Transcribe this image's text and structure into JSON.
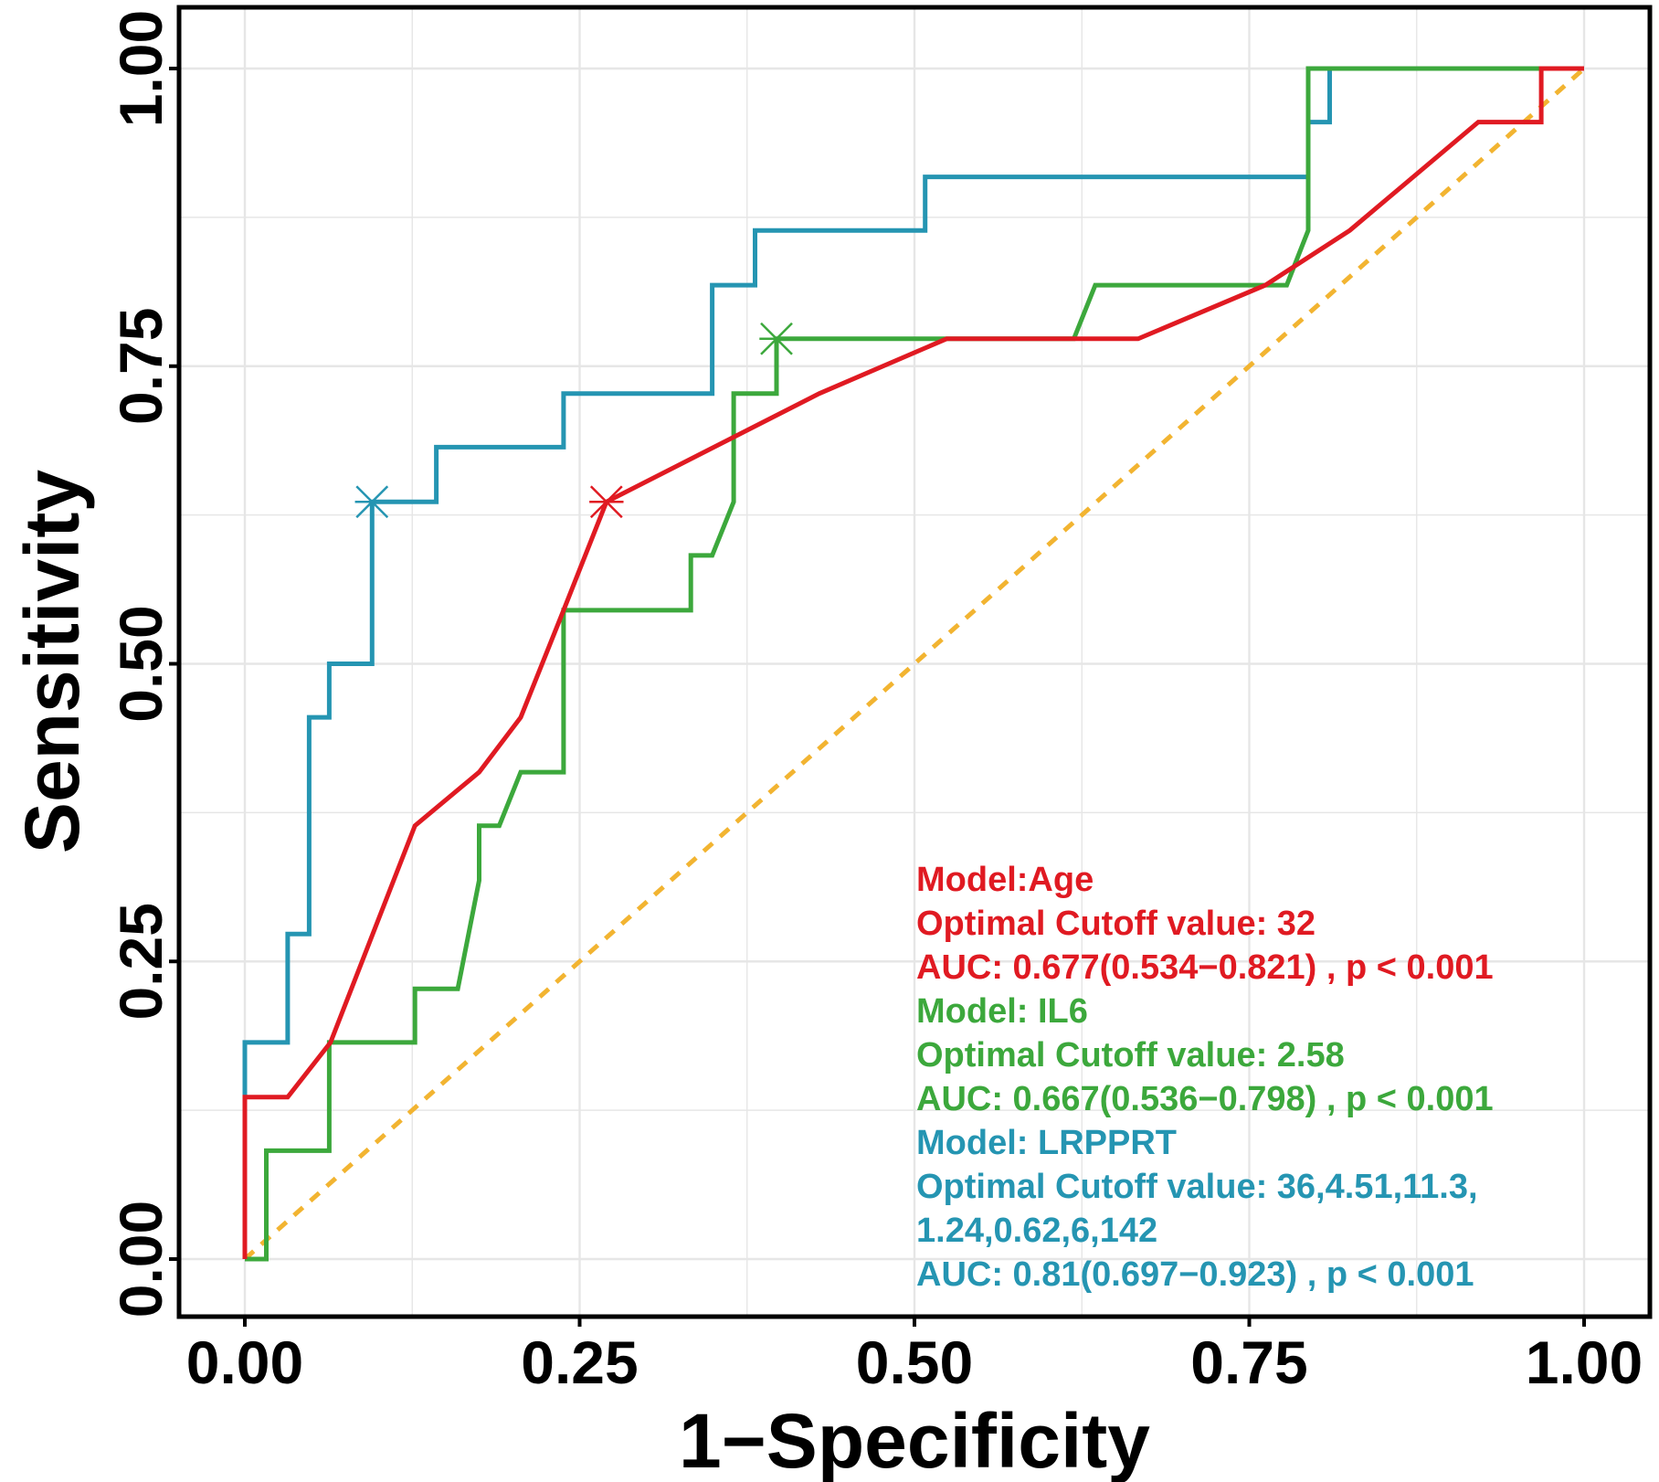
{
  "chart_data": {
    "type": "line",
    "title": "",
    "xlabel": "1−Specificity",
    "ylabel": "Sensitivity",
    "xlim": [
      0,
      1
    ],
    "ylim": [
      0,
      1
    ],
    "x_ticks": [
      "0.00",
      "0.25",
      "0.50",
      "0.75",
      "1.00"
    ],
    "y_ticks": [
      "0.00",
      "0.25",
      "0.50",
      "0.75",
      "1.00"
    ],
    "grid": true,
    "reference_line": {
      "name": "chance",
      "color": "#f2b431",
      "style": "dashed",
      "points": [
        [
          0,
          0
        ],
        [
          1,
          1
        ]
      ]
    },
    "series": [
      {
        "name": "Age",
        "color": "#e01a22",
        "points": [
          [
            0,
            0
          ],
          [
            0,
            0.136
          ],
          [
            0.032,
            0.136
          ],
          [
            0.064,
            0.182
          ],
          [
            0.127,
            0.364
          ],
          [
            0.175,
            0.409
          ],
          [
            0.206,
            0.455
          ],
          [
            0.238,
            0.545
          ],
          [
            0.27,
            0.636
          ],
          [
            0.429,
            0.727
          ],
          [
            0.524,
            0.773
          ],
          [
            0.667,
            0.773
          ],
          [
            0.762,
            0.818
          ],
          [
            0.825,
            0.864
          ],
          [
            0.921,
            0.955
          ],
          [
            0.968,
            0.955
          ],
          [
            0.968,
            1
          ],
          [
            1,
            1
          ]
        ],
        "optimal_point": [
          0.27,
          0.636
        ]
      },
      {
        "name": "IL6",
        "color": "#3ca83c",
        "points": [
          [
            0,
            0
          ],
          [
            0.016,
            0
          ],
          [
            0.016,
            0.091
          ],
          [
            0.063,
            0.091
          ],
          [
            0.063,
            0.182
          ],
          [
            0.127,
            0.182
          ],
          [
            0.127,
            0.227
          ],
          [
            0.159,
            0.227
          ],
          [
            0.175,
            0.318
          ],
          [
            0.175,
            0.364
          ],
          [
            0.19,
            0.364
          ],
          [
            0.206,
            0.409
          ],
          [
            0.238,
            0.409
          ],
          [
            0.238,
            0.545
          ],
          [
            0.333,
            0.545
          ],
          [
            0.333,
            0.591
          ],
          [
            0.349,
            0.591
          ],
          [
            0.365,
            0.636
          ],
          [
            0.365,
            0.727
          ],
          [
            0.397,
            0.727
          ],
          [
            0.397,
            0.773
          ],
          [
            0.619,
            0.773
          ],
          [
            0.635,
            0.818
          ],
          [
            0.778,
            0.818
          ],
          [
            0.794,
            0.864
          ],
          [
            0.794,
            1
          ],
          [
            1,
            1
          ]
        ],
        "optimal_point": [
          0.397,
          0.773
        ]
      },
      {
        "name": "LRPPRT",
        "color": "#2595b2",
        "points": [
          [
            0,
            0.136
          ],
          [
            0,
            0.182
          ],
          [
            0.032,
            0.182
          ],
          [
            0.032,
            0.273
          ],
          [
            0.048,
            0.273
          ],
          [
            0.048,
            0.455
          ],
          [
            0.063,
            0.455
          ],
          [
            0.063,
            0.5
          ],
          [
            0.095,
            0.5
          ],
          [
            0.095,
            0.636
          ],
          [
            0.143,
            0.636
          ],
          [
            0.143,
            0.682
          ],
          [
            0.238,
            0.682
          ],
          [
            0.238,
            0.727
          ],
          [
            0.349,
            0.727
          ],
          [
            0.349,
            0.818
          ],
          [
            0.381,
            0.818
          ],
          [
            0.381,
            0.864
          ],
          [
            0.508,
            0.864
          ],
          [
            0.508,
            0.909
          ],
          [
            0.794,
            0.909
          ],
          [
            0.794,
            0.955
          ],
          [
            0.81,
            0.955
          ],
          [
            0.81,
            1
          ],
          [
            1,
            1
          ]
        ],
        "optimal_point": [
          0.095,
          0.636
        ]
      }
    ],
    "annotations": [
      {
        "color": "#e01a22",
        "lines": [
          "Model:Age",
          "Optimal Cutoff value:  32",
          " AUC:  0.677(0.534−0.821) , p < 0.001"
        ]
      },
      {
        "color": "#3ca83c",
        "lines": [
          "Model: IL6",
          "Optimal Cutoff value:  2.58",
          " AUC:  0.667(0.536−0.798) , p < 0.001"
        ]
      },
      {
        "color": "#2595b2",
        "lines": [
          "Model: LRPPRT",
          "Optimal Cutoff value:  36,4.51,11.3,",
          "1.24,0.62,6,142",
          " AUC:  0.81(0.697−0.923) , p < 0.001"
        ]
      }
    ]
  }
}
